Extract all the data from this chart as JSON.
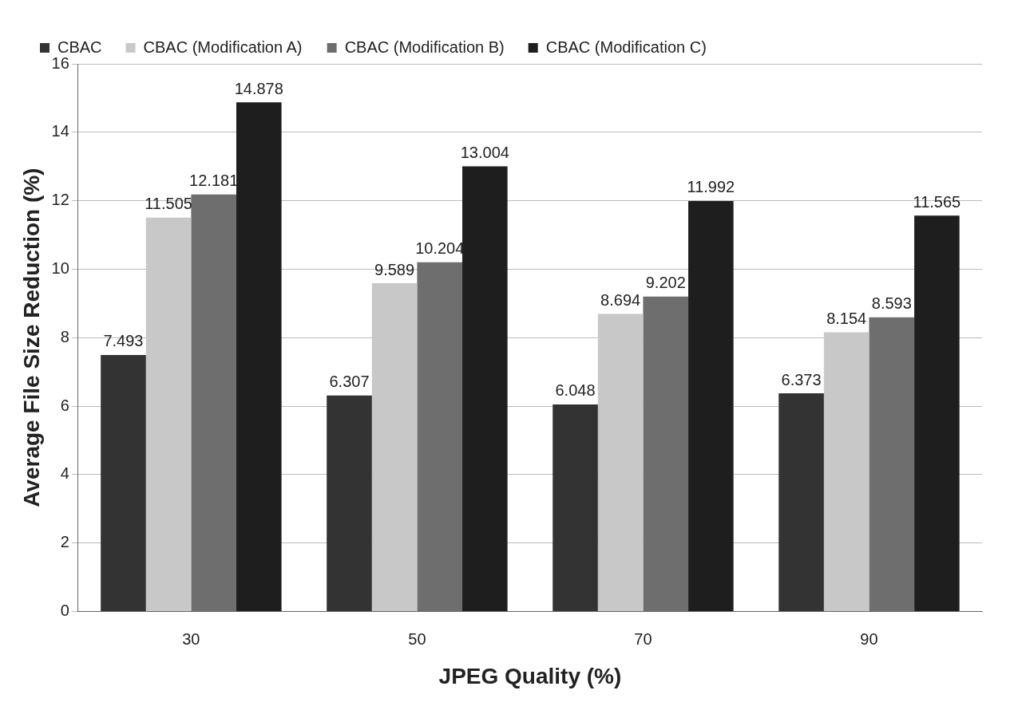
{
  "chart_data": {
    "type": "bar",
    "xlabel": "JPEG Quality (%)",
    "ylabel": "Average File Size Reduction (%)",
    "categories": [
      "30",
      "50",
      "70",
      "90"
    ],
    "series": [
      {
        "name": "CBAC",
        "color": "#333333",
        "values": [
          7.493,
          6.307,
          6.048,
          6.373
        ]
      },
      {
        "name": "CBAC (Modification A)",
        "color": "#c8c8c8",
        "values": [
          11.505,
          9.589,
          8.694,
          8.154
        ]
      },
      {
        "name": "CBAC (Modification B)",
        "color": "#6e6e6e",
        "values": [
          12.181,
          10.204,
          9.202,
          8.593
        ]
      },
      {
        "name": "CBAC (Modification C)",
        "color": "#1e1e1e",
        "values": [
          14.878,
          13.004,
          11.992,
          11.565
        ]
      }
    ],
    "ylim": [
      0,
      16
    ],
    "yticks": [
      0,
      2,
      4,
      6,
      8,
      10,
      12,
      14,
      16
    ],
    "grid": "y",
    "legend": "top",
    "data_labels": true
  }
}
